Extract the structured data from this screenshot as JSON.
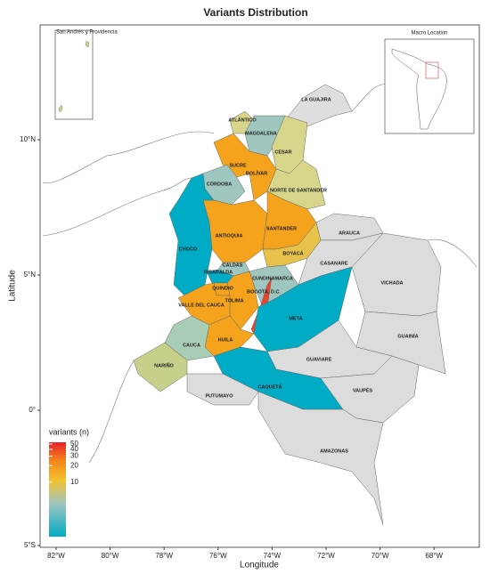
{
  "title": "Variants Distribution",
  "axes": {
    "x_label": "Longitude",
    "y_label": "Latitude",
    "x_ticks": [
      {
        "value": -82,
        "label": "82°W"
      },
      {
        "value": -80,
        "label": "80°W"
      },
      {
        "value": -78,
        "label": "78°W"
      },
      {
        "value": -76,
        "label": "76°W"
      },
      {
        "value": -74,
        "label": "74°W"
      },
      {
        "value": -72,
        "label": "72°W"
      },
      {
        "value": -70,
        "label": "70°W"
      },
      {
        "value": -68,
        "label": "68°W"
      }
    ],
    "y_ticks": [
      {
        "value": 10,
        "label": "10°N"
      },
      {
        "value": 5,
        "label": "5°N"
      },
      {
        "value": 0,
        "label": "0°"
      },
      {
        "value": -5,
        "label": "5°S"
      }
    ]
  },
  "legend": {
    "title": "variants (n)",
    "scale": "log",
    "lim": [
      1,
      50
    ],
    "ticks": [
      50,
      40,
      30,
      20,
      10
    ]
  },
  "insets": {
    "left_title": "San Andres y Providencia",
    "right_title": "Macro Location"
  },
  "regions": [
    {
      "label": "LA GUAJIRA",
      "color": "#dedede"
    },
    {
      "label": "ATLÁNTICO",
      "color": "#d6d58a"
    },
    {
      "label": "MAGDALENA",
      "color": "#9fc6bf"
    },
    {
      "label": "CESAR",
      "color": "#d6d58a"
    },
    {
      "label": "SUCRE",
      "color": "#9fc6bf"
    },
    {
      "label": "BOLÍVAR",
      "color": "#f5a31c"
    },
    {
      "label": "CÓRDOBA",
      "color": "#9fc6bf"
    },
    {
      "label": "NORTE DE SANTANDER",
      "color": "#d6d58a"
    },
    {
      "label": "ANTIOQUIA",
      "color": "#f5a31c"
    },
    {
      "label": "SANTANDER",
      "color": "#f5a31c"
    },
    {
      "label": "CHOCO",
      "color": "#00abc5"
    },
    {
      "label": "BOYACÁ",
      "color": "#e7c24a"
    },
    {
      "label": "ARAUCA",
      "color": "#dcdcdc"
    },
    {
      "label": "CASANARE",
      "color": "#dcdcdc"
    },
    {
      "label": "VICHADA",
      "color": "#dcdcdc"
    },
    {
      "label": "CALDAS",
      "color": "#9fc6bf"
    },
    {
      "label": "RISARALDA",
      "color": "#00abc5"
    },
    {
      "label": "CUNDINAMARCA",
      "color": "#9fc6bf"
    },
    {
      "label": "QUINDIO",
      "color": "#f5a31c"
    },
    {
      "label": "BOGOTA, D.C.",
      "color": "#e8452c"
    },
    {
      "label": "TOLIMA",
      "color": "#f5a31c"
    },
    {
      "label": "VALLE DEL CAUCA",
      "color": "#f5a31c"
    },
    {
      "label": "META",
      "color": "#00abc5"
    },
    {
      "label": "GUAINÍA",
      "color": "#dcdcdc"
    },
    {
      "label": "HUILA",
      "color": "#f5a31c"
    },
    {
      "label": "CAUCA",
      "color": "#a9cdb4"
    },
    {
      "label": "NARIÑO",
      "color": "#c8cf8a"
    },
    {
      "label": "GUAVIARE",
      "color": "#dcdcdc"
    },
    {
      "label": "CAQUETÁ",
      "color": "#00abc5"
    },
    {
      "label": "VAUPÉS",
      "color": "#dcdcdc"
    },
    {
      "label": "PUTUMAYO",
      "color": "#dcdcdc"
    },
    {
      "label": "AMAZONAS",
      "color": "#dcdcdc"
    }
  ]
}
